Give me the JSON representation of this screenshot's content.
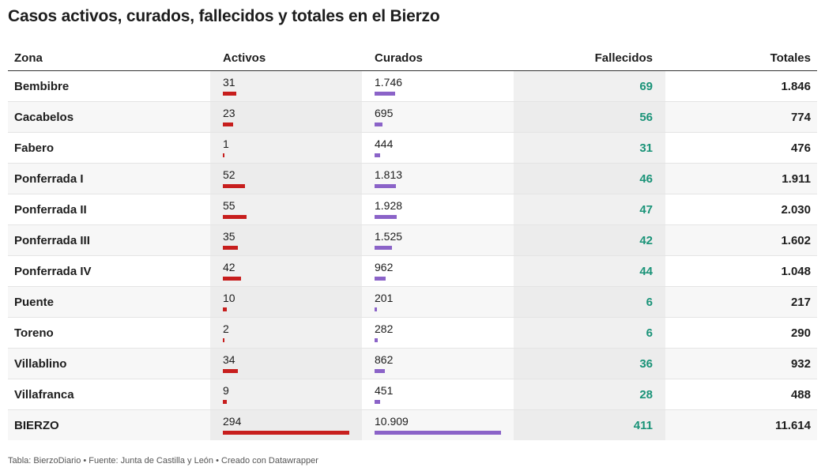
{
  "title": "Casos activos, curados, fallecidos y totales en el Bierzo",
  "footer": "Tabla: BierzoDiario • Fuente: Junta de Castilla y León • Creado con Datawrapper",
  "colors": {
    "activos_bar": "#c71e1d",
    "curados_bar": "#8b63c8",
    "fallecidos_text": "#1a9378"
  },
  "chart_data": {
    "type": "table",
    "columns": [
      "Zona",
      "Activos",
      "Curados",
      "Fallecidos",
      "Totales"
    ],
    "rows": [
      {
        "zona": "Bembibre",
        "activos": 31,
        "activos_label": "31",
        "curados": 1746,
        "curados_label": "1.746",
        "fallecidos": "69",
        "totales": "1.846"
      },
      {
        "zona": "Cacabelos",
        "activos": 23,
        "activos_label": "23",
        "curados": 695,
        "curados_label": "695",
        "fallecidos": "56",
        "totales": "774"
      },
      {
        "zona": "Fabero",
        "activos": 1,
        "activos_label": "1",
        "curados": 444,
        "curados_label": "444",
        "fallecidos": "31",
        "totales": "476"
      },
      {
        "zona": "Ponferrada I",
        "activos": 52,
        "activos_label": "52",
        "curados": 1813,
        "curados_label": "1.813",
        "fallecidos": "46",
        "totales": "1.911"
      },
      {
        "zona": "Ponferrada II",
        "activos": 55,
        "activos_label": "55",
        "curados": 1928,
        "curados_label": "1.928",
        "fallecidos": "47",
        "totales": "2.030"
      },
      {
        "zona": "Ponferrada III",
        "activos": 35,
        "activos_label": "35",
        "curados": 1525,
        "curados_label": "1.525",
        "fallecidos": "42",
        "totales": "1.602"
      },
      {
        "zona": "Ponferrada IV",
        "activos": 42,
        "activos_label": "42",
        "curados": 962,
        "curados_label": "962",
        "fallecidos": "44",
        "totales": "1.048"
      },
      {
        "zona": "Puente",
        "activos": 10,
        "activos_label": "10",
        "curados": 201,
        "curados_label": "201",
        "fallecidos": "6",
        "totales": "217"
      },
      {
        "zona": "Toreno",
        "activos": 2,
        "activos_label": "2",
        "curados": 282,
        "curados_label": "282",
        "fallecidos": "6",
        "totales": "290"
      },
      {
        "zona": "Villablino",
        "activos": 34,
        "activos_label": "34",
        "curados": 862,
        "curados_label": "862",
        "fallecidos": "36",
        "totales": "932"
      },
      {
        "zona": "Villafranca",
        "activos": 9,
        "activos_label": "9",
        "curados": 451,
        "curados_label": "451",
        "fallecidos": "28",
        "totales": "488"
      },
      {
        "zona": "BIERZO",
        "activos": 294,
        "activos_label": "294",
        "curados": 10909,
        "curados_label": "10.909",
        "fallecidos": "411",
        "totales": "11.614"
      }
    ]
  }
}
